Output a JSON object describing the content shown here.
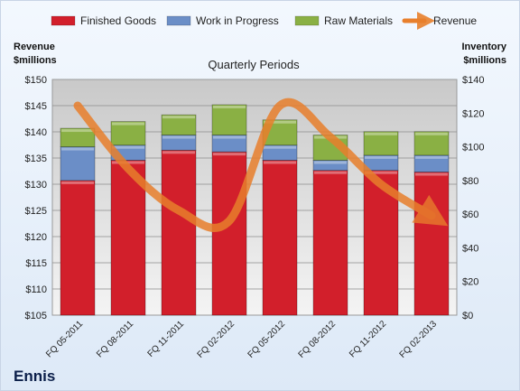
{
  "chart_data": {
    "type": "bar",
    "subtitle": "Quarterly Periods",
    "company": "Ennis",
    "y_left_title": [
      "Revenue",
      "$millions"
    ],
    "y_right_title": [
      "Inventory",
      "$millions"
    ],
    "categories": [
      "FQ 05-2011",
      "FQ 08-2011",
      "FQ 11-2011",
      "FQ 02-2012",
      "FQ 05-2012",
      "FQ 08-2012",
      "FQ 11-2012",
      "FQ 02-2013"
    ],
    "series": [
      {
        "name": "Finished Goods",
        "kind": "stacked-bar",
        "axis": "right",
        "color": "#d21f2b",
        "values": [
          80,
          92,
          98,
          97,
          92,
          86,
          86,
          85
        ]
      },
      {
        "name": "Work in Progress",
        "kind": "stacked-bar",
        "axis": "right",
        "color": "#6b8ec7",
        "values": [
          20,
          9,
          9,
          10,
          9,
          6,
          9,
          10
        ]
      },
      {
        "name": "Raw Materials",
        "kind": "stacked-bar",
        "axis": "right",
        "color": "#8ab044",
        "values": [
          11,
          14,
          12,
          18,
          15,
          15,
          14,
          14
        ]
      },
      {
        "name": "Revenue",
        "kind": "line",
        "axis": "left",
        "color": "#e87f2c",
        "values": [
          145,
          133,
          125,
          123,
          145,
          139,
          130,
          124
        ]
      }
    ],
    "y_left": {
      "min": 105,
      "max": 150,
      "step": 5,
      "prefix": "$"
    },
    "y_right": {
      "min": 0,
      "max": 140,
      "step": 20,
      "prefix": "$"
    },
    "grid": true,
    "legend_position": "top"
  }
}
